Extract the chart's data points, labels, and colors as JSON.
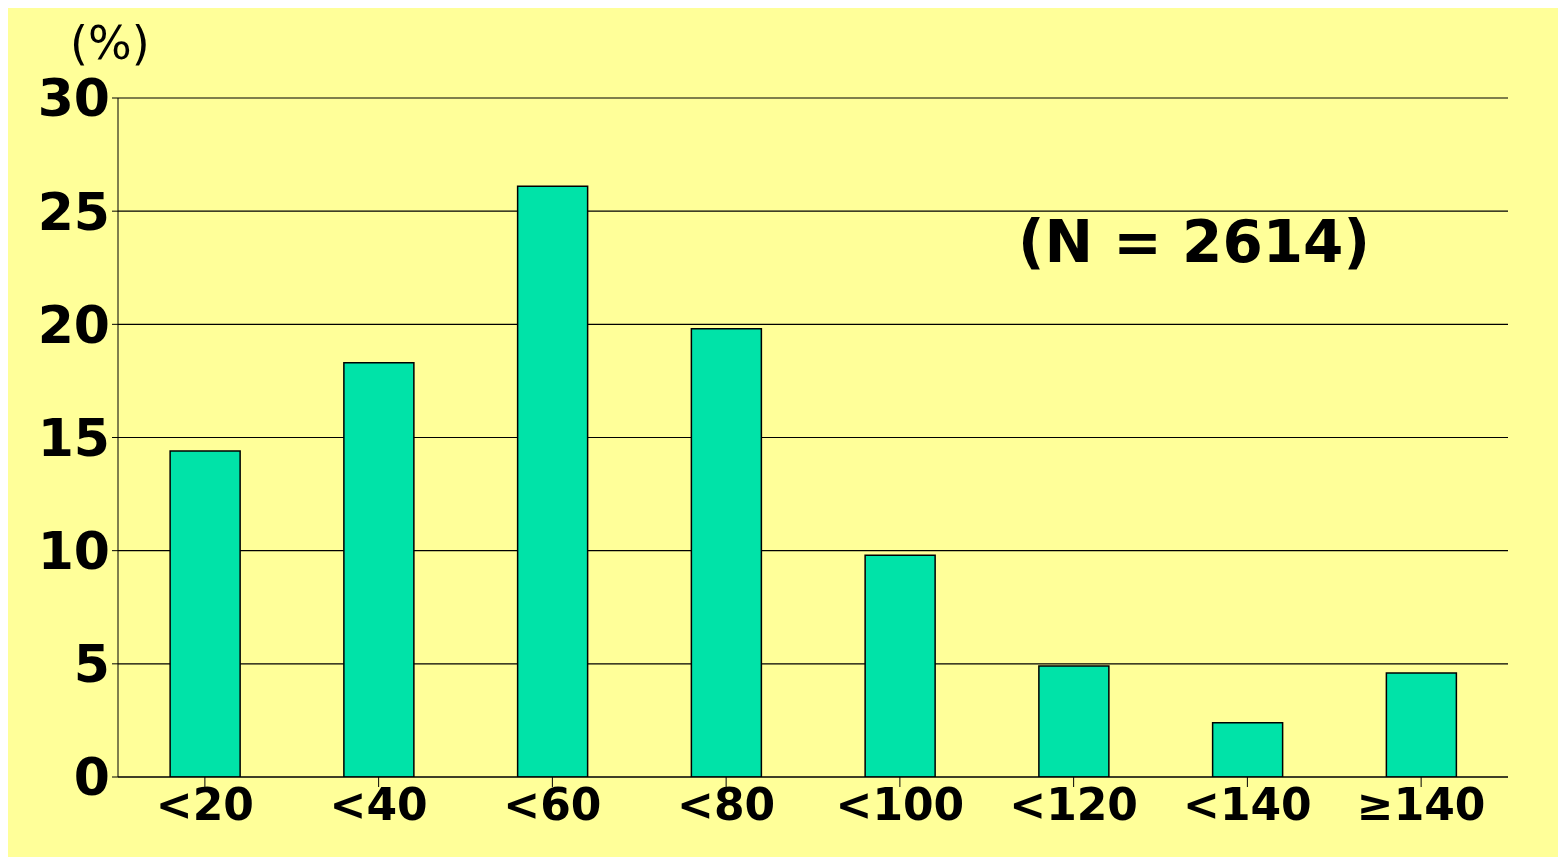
{
  "chart_data": {
    "type": "bar",
    "ylabel": "(%)",
    "categories": [
      "<20",
      "<40",
      "<60",
      "<80",
      "<100",
      "<120",
      "<140",
      "≥140"
    ],
    "values": [
      14.4,
      18.3,
      26.1,
      19.8,
      9.8,
      4.9,
      2.4,
      4.6
    ],
    "color": "#00e3a8",
    "ylim": [
      0,
      30
    ],
    "yticks": [
      0,
      5,
      10,
      15,
      20,
      25,
      30
    ],
    "grid": "y",
    "annotations": [
      "(N = 2614)"
    ]
  }
}
